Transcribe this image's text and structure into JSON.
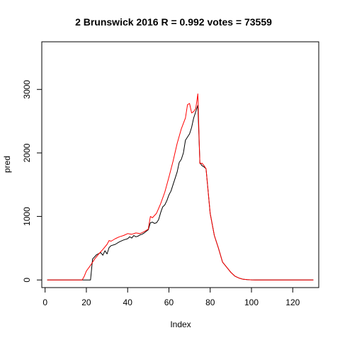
{
  "chart_data": {
    "type": "line",
    "title": "2 Brunswick 2016 R = 0.992 votes = 73559",
    "xlabel": "Index",
    "ylabel": "pred",
    "xlim": [
      -1.6,
      132.6
    ],
    "ylim": [
      -120,
      3750
    ],
    "x_ticks": [
      0,
      20,
      40,
      60,
      80,
      100,
      120
    ],
    "y_ticks": [
      0,
      1000,
      2000,
      3000
    ],
    "grid": false,
    "legend": "none",
    "series": [
      {
        "color": "#000000",
        "x": [
          1,
          18,
          21,
          22,
          23,
          25,
          27,
          28,
          29,
          30,
          31,
          32,
          34,
          36,
          38,
          40,
          41,
          42,
          43,
          44,
          45,
          46,
          47,
          48,
          50,
          51,
          52,
          53,
          54,
          55,
          56,
          57,
          58,
          59,
          60,
          61,
          62,
          63,
          64,
          65,
          66,
          67,
          68,
          69,
          70,
          71,
          72,
          73,
          74,
          75,
          76,
          77,
          78,
          80,
          82,
          84,
          86,
          88,
          90,
          92,
          94,
          96,
          98,
          100,
          102,
          104,
          106,
          110,
          120,
          130
        ],
        "y": [
          0,
          0,
          0,
          0,
          330,
          400,
          430,
          390,
          460,
          410,
          510,
          540,
          560,
          600,
          630,
          650,
          680,
          660,
          700,
          680,
          690,
          710,
          720,
          740,
          790,
          900,
          910,
          890,
          900,
          950,
          1060,
          1150,
          1180,
          1250,
          1340,
          1400,
          1500,
          1600,
          1700,
          1850,
          1900,
          2000,
          2200,
          2250,
          2300,
          2400,
          2550,
          2650,
          2750,
          1850,
          1800,
          1780,
          1750,
          1050,
          700,
          500,
          280,
          200,
          120,
          60,
          30,
          10,
          5,
          2,
          0,
          0,
          0,
          0,
          0,
          0
        ]
      },
      {
        "color": "#ff0000",
        "x": [
          1,
          18,
          19,
          20,
          22,
          24,
          26,
          28,
          30,
          31,
          32,
          34,
          36,
          38,
          40,
          42,
          44,
          46,
          48,
          50,
          51,
          52,
          54,
          56,
          58,
          60,
          62,
          64,
          66,
          68,
          69,
          70,
          71,
          72,
          73,
          74,
          75,
          76,
          77,
          78,
          80,
          82,
          84,
          86,
          88,
          90,
          92,
          94,
          96,
          98,
          100,
          102,
          104,
          106,
          110,
          120,
          130
        ],
        "y": [
          0,
          0,
          60,
          140,
          230,
          330,
          410,
          480,
          560,
          620,
          610,
          650,
          680,
          700,
          730,
          720,
          740,
          730,
          760,
          800,
          1000,
          980,
          1050,
          1200,
          1380,
          1620,
          1870,
          2150,
          2380,
          2550,
          2760,
          2780,
          2630,
          2650,
          2700,
          2930,
          1830,
          1840,
          1800,
          1750,
          1050,
          700,
          500,
          280,
          200,
          120,
          60,
          30,
          10,
          5,
          2,
          0,
          0,
          0,
          0,
          0,
          0
        ]
      }
    ]
  }
}
